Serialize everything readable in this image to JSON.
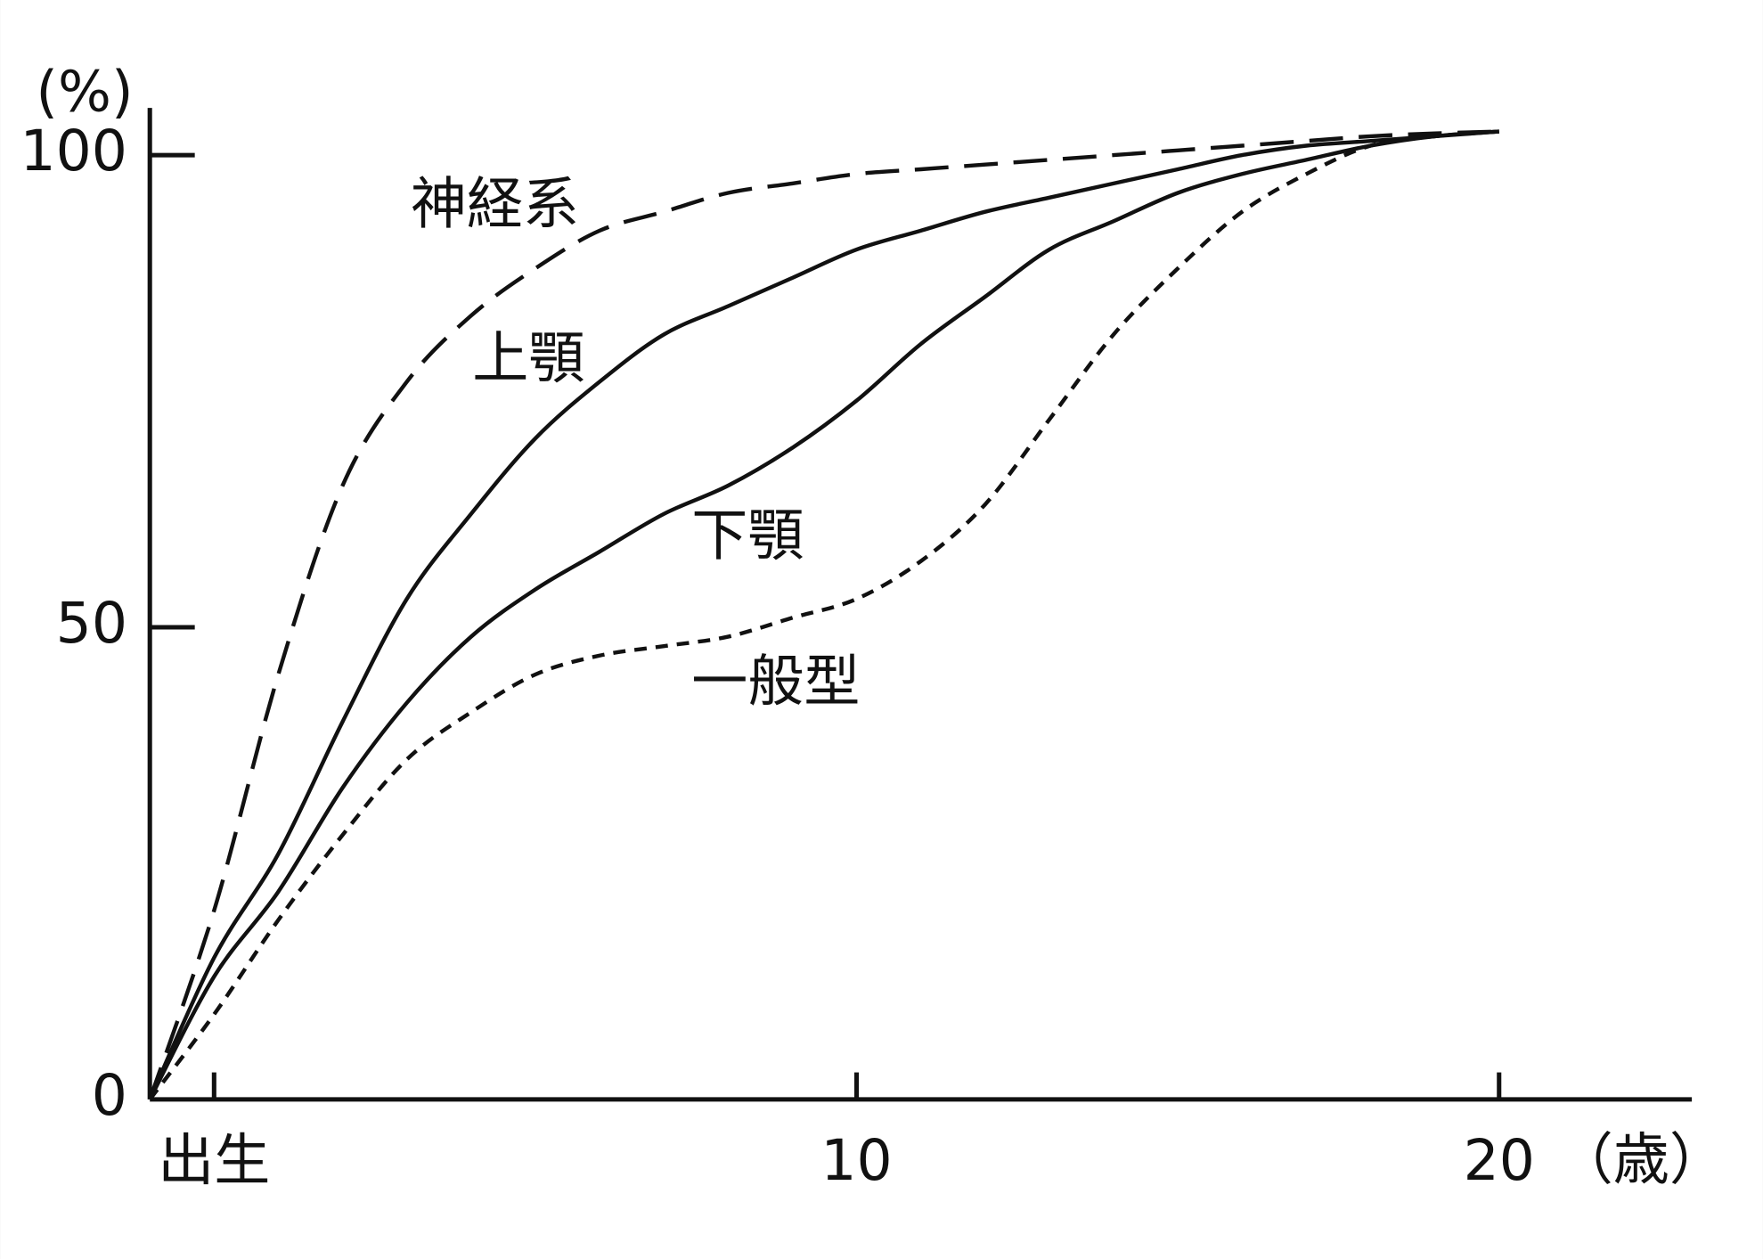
{
  "chart_data": {
    "type": "line",
    "y_unit_label": "(%)",
    "x_unit_label": "（歳）",
    "x": [
      -1,
      0,
      1,
      2,
      3,
      4,
      5,
      6,
      7,
      8,
      9,
      10,
      11,
      12,
      13,
      14,
      15,
      16,
      17,
      18,
      19,
      20
    ],
    "series": [
      {
        "name": "神経系",
        "color": "#111111",
        "line_style": "long-dash",
        "values": [
          0,
          20,
          45,
          65,
          76,
          83,
          88,
          92,
          94,
          96,
          97,
          98,
          98.5,
          99,
          99.5,
          100,
          100.5,
          101,
          101.5,
          102,
          102.3,
          102.5
        ]
      },
      {
        "name": "上顎",
        "color": "#111111",
        "line_style": "solid",
        "values": [
          0,
          15,
          26,
          40,
          53,
          62,
          70,
          76,
          81,
          84,
          87,
          90,
          92,
          94,
          95.5,
          97,
          98.5,
          100,
          101,
          101.5,
          102,
          102.5
        ]
      },
      {
        "name": "下顎",
        "color": "#111111",
        "line_style": "solid",
        "values": [
          0,
          13,
          22,
          33,
          42,
          49,
          54,
          58,
          62,
          65,
          69,
          74,
          80,
          85,
          90,
          93,
          96,
          98,
          99.5,
          101,
          102,
          102.5
        ]
      },
      {
        "name": "一般型",
        "color": "#111111",
        "line_style": "short-dash",
        "values": [
          0,
          9,
          19,
          28,
          36,
          41,
          45,
          47,
          48,
          49,
          51,
          53,
          57,
          63,
          72,
          81,
          88,
          94,
          98,
          101,
          102,
          102.5
        ]
      }
    ],
    "xlim": [
      -1,
      23
    ],
    "xticks": [
      {
        "value": 0,
        "label": "出生"
      },
      10,
      20
    ],
    "ylim": [
      0,
      105
    ],
    "yticks": [
      0,
      50,
      100
    ],
    "grid": false
  }
}
